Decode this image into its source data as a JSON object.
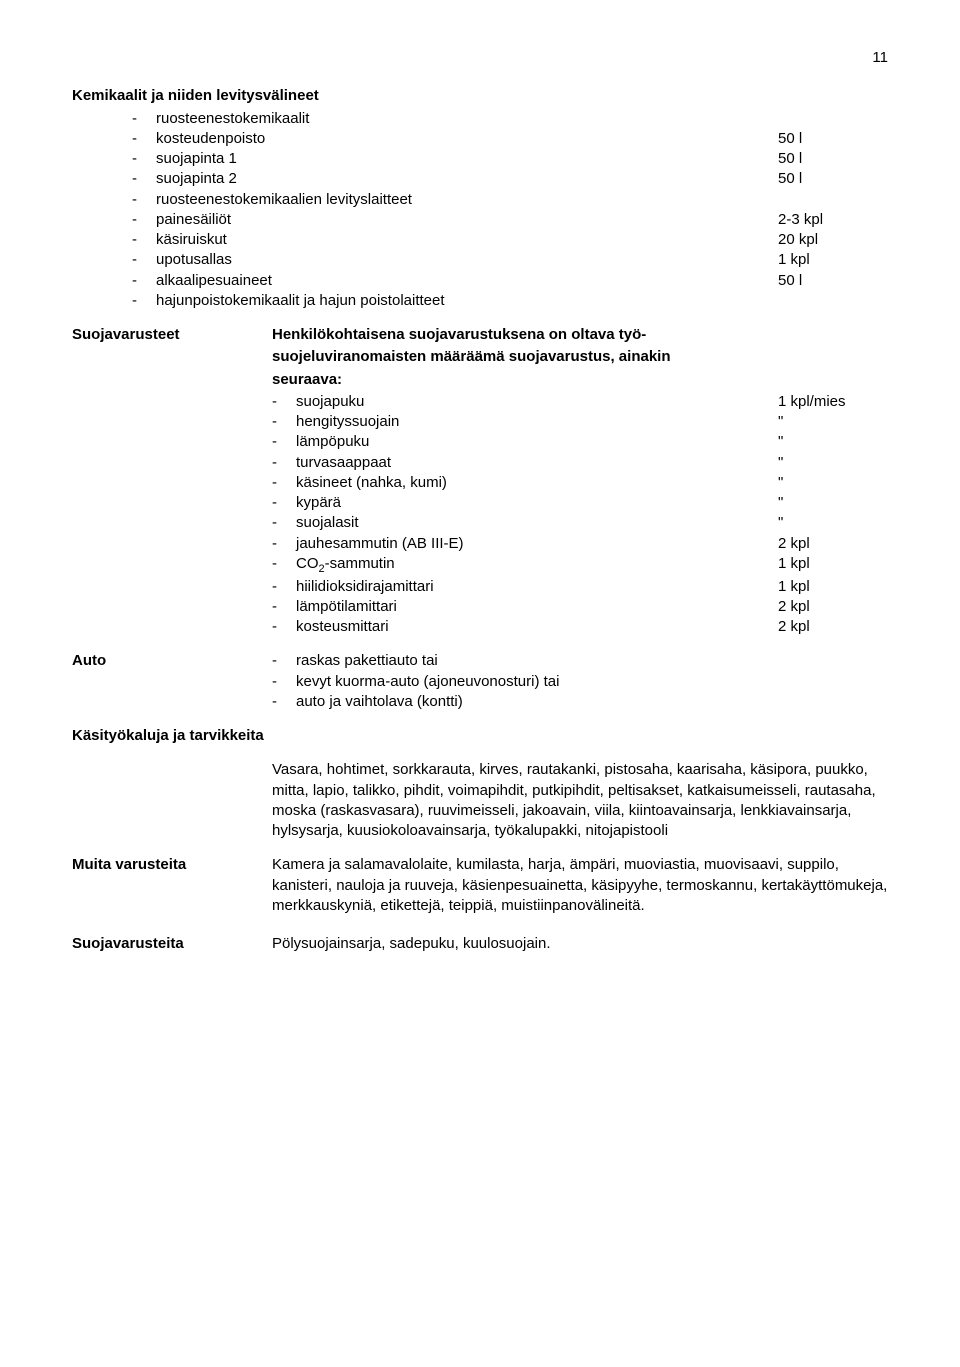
{
  "page_number": "11",
  "section1": {
    "heading": "Kemikaalit ja niiden levitysvälineet",
    "items": [
      {
        "label": "ruosteenestokemikaalit",
        "value": ""
      },
      {
        "label": "kosteudenpoisto",
        "value": "50 l"
      },
      {
        "label": "suojapinta 1",
        "value": "50 l"
      },
      {
        "label": "suojapinta 2",
        "value": "50 l"
      },
      {
        "label": "ruosteenestokemikaalien levityslaitteet",
        "value": ""
      },
      {
        "label": "painesäiliöt",
        "value": "2-3 kpl"
      },
      {
        "label": "käsiruiskut",
        "value": "20 kpl"
      },
      {
        "label": "upotusallas",
        "value": "1 kpl"
      },
      {
        "label": "alkaalipesuaineet",
        "value": "50 l"
      },
      {
        "label": "hajunpoistokemikaalit ja hajun poistolaitteet",
        "value": ""
      }
    ]
  },
  "suojavarusteet": {
    "side_label": "Suojavarusteet",
    "intro_l1": "Henkilökohtaisena suojavarustuksena on oltava työ-",
    "intro_l2": "suojeluviranomaisten määräämä suojavarustus, ainakin",
    "intro_l3": "seuraava:",
    "items": [
      {
        "label": "suojapuku",
        "value": "1 kpl/mies"
      },
      {
        "label": "hengityssuojain",
        "value": "\""
      },
      {
        "label": "lämpöpuku",
        "value": "\""
      },
      {
        "label": "turvasaappaat",
        "value": "\""
      },
      {
        "label": "käsineet (nahka, kumi)",
        "value": "\""
      },
      {
        "label": "kypärä",
        "value": "\""
      },
      {
        "label": "suojalasit",
        "value": "\""
      },
      {
        "label": "jauhesammutin (AB III-E)",
        "value": "2 kpl"
      },
      {
        "label_html": "CO<sub>2</sub>-sammutin",
        "label": "CO2-sammutin",
        "value": "1 kpl"
      },
      {
        "label": "hiilidioksidirajamittari",
        "value": "1 kpl"
      },
      {
        "label": "lämpötilamittari",
        "value": "2 kpl"
      },
      {
        "label": "kosteusmittari",
        "value": "2 kpl"
      }
    ]
  },
  "auto": {
    "side_label": "Auto",
    "items": [
      {
        "label": "raskas pakettiauto tai"
      },
      {
        "label": "kevyt kuorma-auto (ajoneuvonosturi) tai"
      },
      {
        "label": "auto ja vaihtolava (kontti)"
      }
    ]
  },
  "kasityokaluja": {
    "heading": "Käsityökaluja ja tarvikkeita",
    "text": "Vasara, hohtimet, sorkkarauta, kirves, rautakanki, pistosaha, kaarisaha, käsipora, puukko, mitta, lapio, talikko, pihdit, voimapihdit, putkipihdit, peltisakset, katkaisumeisseli, rautasaha, moska (raskasvasara), ruuvimeisseli, jakoavain, viila, kiintoavainsarja, lenkkiavainsarja, hylsysarja, kuusiokoloavainsarja, työkalupakki, nitojapistooli"
  },
  "muita_varusteita": {
    "side_label": "Muita varusteita",
    "text": "Kamera ja salamavalolaite, kumilasta, harja, ämpäri, muoviastia, muovisaavi, suppilo, kanisteri, nauloja ja ruuveja, käsienpesuainetta, käsipyyhe, termoskannu, kertakäyttömukeja, merkkauskyniä, etikettejä, teippiä, muistiinpanovälineitä."
  },
  "suojavarusteita": {
    "side_label": "Suojavarusteita",
    "text": "Pölysuojainsarja, sadepuku, kuulosuojain."
  }
}
